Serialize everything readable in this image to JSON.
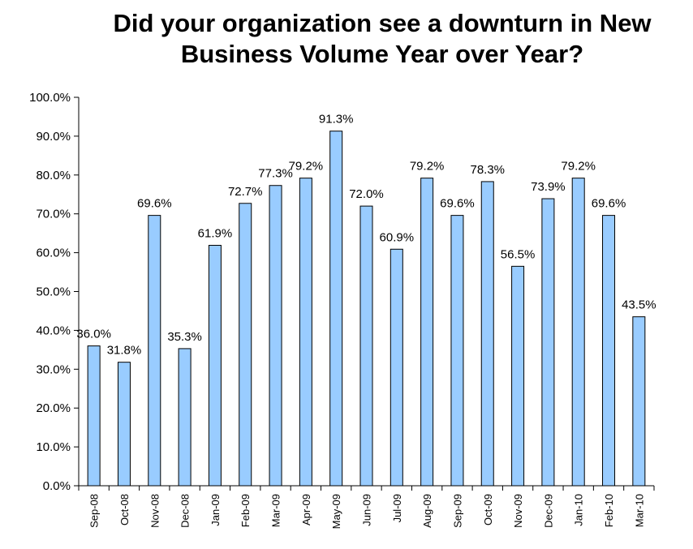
{
  "chart_data": {
    "type": "bar",
    "title_line1": "Did your organization see a downturn in New",
    "title_line2": "Business Volume Year over Year?",
    "categories": [
      "Sep-08",
      "Oct-08",
      "Nov-08",
      "Dec-08",
      "Jan-09",
      "Feb-09",
      "Mar-09",
      "Apr-09",
      "May-09",
      "Jun-09",
      "Jul-09",
      "Aug-09",
      "Sep-09",
      "Oct-09",
      "Nov-09",
      "Dec-09",
      "Jan-10",
      "Feb-10",
      "Mar-10"
    ],
    "values": [
      36.0,
      31.8,
      69.6,
      35.3,
      61.9,
      72.7,
      77.3,
      79.2,
      91.3,
      72.0,
      60.9,
      79.2,
      69.6,
      78.3,
      56.5,
      73.9,
      79.2,
      69.6,
      43.5
    ],
    "value_labels": [
      "36.0%",
      "31.8%",
      "69.6%",
      "35.3%",
      "61.9%",
      "72.7%",
      "77.3%",
      "79.2%",
      "91.3%",
      "72.0%",
      "60.9%",
      "79.2%",
      "69.6%",
      "78.3%",
      "56.5%",
      "73.9%",
      "79.2%",
      "69.6%",
      "43.5%"
    ],
    "y_ticks": [
      "0.0%",
      "10.0%",
      "20.0%",
      "30.0%",
      "40.0%",
      "50.0%",
      "60.0%",
      "70.0%",
      "80.0%",
      "90.0%",
      "100.0%"
    ],
    "ylim": [
      0,
      100
    ],
    "grid": false,
    "legend": "none",
    "bar_color": "#99CCFF",
    "bar_stroke": "#000000"
  }
}
